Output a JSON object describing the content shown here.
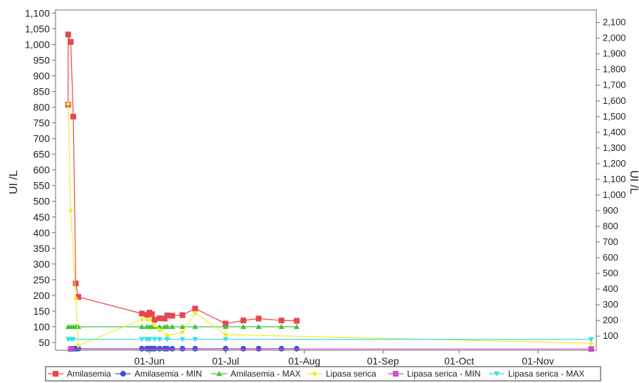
{
  "chart_data": {
    "type": "line",
    "ylabel_left": "UI /L",
    "ylabel_right": "UI /L",
    "y_left": {
      "range": [
        25,
        1110
      ],
      "ticks": [
        50,
        100,
        150,
        200,
        250,
        300,
        350,
        400,
        450,
        500,
        550,
        600,
        650,
        700,
        750,
        800,
        850,
        900,
        950,
        1000,
        1050,
        1100
      ],
      "tick_labels": [
        "50",
        "100",
        "150",
        "200",
        "250",
        "300",
        "350",
        "400",
        "450",
        "500",
        "550",
        "600",
        "650",
        "700",
        "750",
        "800",
        "850",
        "900",
        "950",
        "1,000",
        "1,050",
        "1,100"
      ]
    },
    "y_right": {
      "range": [
        10,
        2180
      ],
      "ticks": [
        100,
        200,
        300,
        400,
        500,
        600,
        700,
        800,
        900,
        1000,
        1100,
        1200,
        1300,
        1400,
        1500,
        1600,
        1700,
        1800,
        1900,
        2000,
        2100
      ],
      "tick_labels": [
        "100",
        "200",
        "300",
        "400",
        "500",
        "600",
        "700",
        "800",
        "900",
        "1,000",
        "1,100",
        "1,200",
        "1,300",
        "1,400",
        "1,500",
        "1,600",
        "1,700",
        "1,800",
        "1,900",
        "2,000",
        "2,100"
      ]
    },
    "x_axis": {
      "range": [
        "2023-04-25",
        "2023-11-24"
      ],
      "ticks": [
        "2023-06-01",
        "2023-07-01",
        "2023-08-01",
        "2023-09-01",
        "2023-10-01",
        "2023-11-01"
      ],
      "tick_labels": [
        "01-Jun",
        "01-Jul",
        "01-Aug",
        "01-Sep",
        "01-Oct",
        "01-Nov"
      ]
    },
    "grid": false,
    "legend_position": "bottom",
    "series": [
      {
        "name": "Amilasemia",
        "axis": "left",
        "color": "#e8474c",
        "marker": "square",
        "points": [
          [
            "2023-04-30",
            808
          ],
          [
            "2023-04-30",
            1032
          ],
          [
            "2023-05-01",
            1008
          ],
          [
            "2023-05-02",
            770
          ],
          [
            "2023-05-03",
            238
          ],
          [
            "2023-05-04",
            195
          ],
          [
            "2023-05-29",
            142
          ],
          [
            "2023-05-31",
            138
          ],
          [
            "2023-06-01",
            145
          ],
          [
            "2023-06-02",
            140
          ],
          [
            "2023-06-03",
            122
          ],
          [
            "2023-06-05",
            127
          ],
          [
            "2023-06-07",
            126
          ],
          [
            "2023-06-08",
            136
          ],
          [
            "2023-06-10",
            135
          ],
          [
            "2023-06-14",
            137
          ],
          [
            "2023-06-19",
            158
          ],
          [
            "2023-07-01",
            110
          ],
          [
            "2023-07-08",
            120
          ],
          [
            "2023-07-14",
            126
          ],
          [
            "2023-07-23",
            120
          ],
          [
            "2023-07-29",
            119
          ]
        ]
      },
      {
        "name": "Amilasemia - MIN",
        "axis": "left",
        "color": "#3b4fe0",
        "marker": "circle",
        "points": [
          [
            "2023-05-01",
            30
          ],
          [
            "2023-05-02",
            30
          ],
          [
            "2023-05-03",
            30
          ],
          [
            "2023-05-04",
            30
          ],
          [
            "2023-05-29",
            30
          ],
          [
            "2023-05-31",
            30
          ],
          [
            "2023-06-01",
            30
          ],
          [
            "2023-06-02",
            30
          ],
          [
            "2023-06-03",
            30
          ],
          [
            "2023-06-05",
            30
          ],
          [
            "2023-06-07",
            30
          ],
          [
            "2023-06-08",
            30
          ],
          [
            "2023-06-10",
            30
          ],
          [
            "2023-06-14",
            30
          ],
          [
            "2023-06-19",
            30
          ],
          [
            "2023-07-01",
            30
          ],
          [
            "2023-07-08",
            30
          ],
          [
            "2023-07-14",
            30
          ],
          [
            "2023-07-23",
            30
          ],
          [
            "2023-07-29",
            30
          ]
        ]
      },
      {
        "name": "Amilasemia - MAX",
        "axis": "left",
        "color": "#3ec43e",
        "marker": "triangle-up",
        "points": [
          [
            "2023-04-30",
            100
          ],
          [
            "2023-05-01",
            100
          ],
          [
            "2023-05-02",
            100
          ],
          [
            "2023-05-03",
            100
          ],
          [
            "2023-05-04",
            100
          ],
          [
            "2023-05-29",
            100
          ],
          [
            "2023-05-31",
            100
          ],
          [
            "2023-06-01",
            100
          ],
          [
            "2023-06-02",
            100
          ],
          [
            "2023-06-03",
            100
          ],
          [
            "2023-06-05",
            100
          ],
          [
            "2023-06-07",
            100
          ],
          [
            "2023-06-08",
            100
          ],
          [
            "2023-06-10",
            100
          ],
          [
            "2023-06-14",
            100
          ],
          [
            "2023-06-19",
            100
          ],
          [
            "2023-07-01",
            100
          ],
          [
            "2023-07-08",
            100
          ],
          [
            "2023-07-14",
            100
          ],
          [
            "2023-07-23",
            100
          ],
          [
            "2023-07-29",
            100
          ]
        ]
      },
      {
        "name": "Lipasa serica",
        "axis": "right",
        "color": "#f2ec2e",
        "marker": "diamond",
        "points": [
          [
            "2023-04-30",
            1580
          ],
          [
            "2023-05-01",
            900
          ],
          [
            "2023-05-03",
            340
          ],
          [
            "2023-05-04",
            40
          ],
          [
            "2023-05-29",
            205
          ],
          [
            "2023-05-31",
            205
          ],
          [
            "2023-06-01",
            205
          ],
          [
            "2023-06-03",
            170
          ],
          [
            "2023-06-05",
            140
          ],
          [
            "2023-06-08",
            105
          ],
          [
            "2023-06-14",
            125
          ],
          [
            "2023-06-19",
            248
          ],
          [
            "2023-07-01",
            110
          ],
          [
            "2023-11-22",
            55
          ]
        ]
      },
      {
        "name": "Lipasa serica - MIN",
        "axis": "right",
        "color": "#d34fc9",
        "marker": "square",
        "points": [
          [
            "2023-05-01",
            18
          ],
          [
            "2023-11-22",
            18
          ]
        ]
      },
      {
        "name": "Lipasa serica - MAX",
        "axis": "right",
        "color": "#3ce0ea",
        "marker": "triangle-down",
        "points": [
          [
            "2023-04-30",
            80
          ],
          [
            "2023-05-01",
            80
          ],
          [
            "2023-05-02",
            80
          ],
          [
            "2023-05-29",
            80
          ],
          [
            "2023-05-31",
            80
          ],
          [
            "2023-06-01",
            80
          ],
          [
            "2023-06-03",
            80
          ],
          [
            "2023-06-05",
            80
          ],
          [
            "2023-06-08",
            80
          ],
          [
            "2023-06-14",
            80
          ],
          [
            "2023-06-19",
            80
          ],
          [
            "2023-07-01",
            80
          ],
          [
            "2023-11-22",
            80
          ]
        ]
      }
    ]
  }
}
